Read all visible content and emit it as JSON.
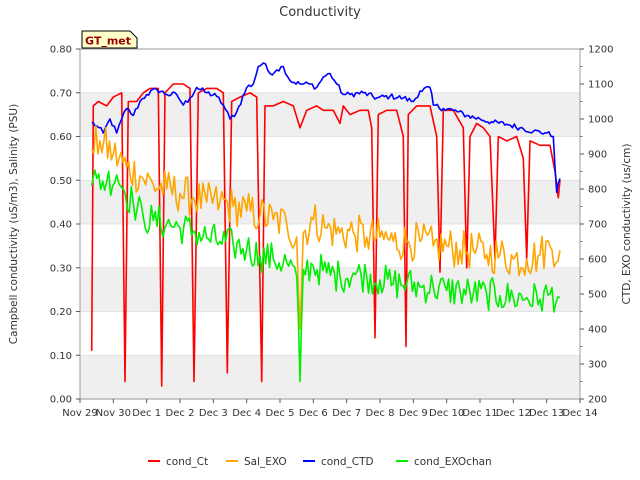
{
  "chart_data": {
    "type": "line",
    "title": "Conductivity",
    "badge": "GT_met",
    "ylabel_left": "Campbell conductivity (uS/m3), Salinity (PSU)",
    "ylabel_right": "CTD, EXO conductivity (us/cm)",
    "ylim_left": [
      0,
      0.8
    ],
    "ylim_right": [
      200,
      1200
    ],
    "yticks_left": [
      "0.00",
      "0.10",
      "0.20",
      "0.30",
      "0.40",
      "0.50",
      "0.60",
      "0.70",
      "0.80"
    ],
    "yticks_right": [
      "200",
      "300",
      "400",
      "500",
      "600",
      "700",
      "800",
      "900",
      "1000",
      "1100",
      "1200"
    ],
    "xticks": [
      "Nov 29",
      "Nov 30",
      "Dec 1",
      "Dec 2",
      "Dec 3",
      "Dec 4",
      "Dec 5",
      "Dec 6",
      "Dec 7",
      "Dec 8",
      "Dec 9",
      "Dec 10",
      "Dec 11",
      "Dec 12",
      "Dec 13",
      "Dec 14"
    ],
    "x_start": "Nov 29",
    "x_end": "Dec 14",
    "band_stripes": true,
    "legend_position": "bottom",
    "series": [
      {
        "name": "cond_Ct",
        "axis": "left",
        "color": "#ff0000",
        "points": [
          [
            0.35,
            0.11
          ],
          [
            0.4,
            0.67
          ],
          [
            0.55,
            0.68
          ],
          [
            0.8,
            0.67
          ],
          [
            1.0,
            0.69
          ],
          [
            1.25,
            0.7
          ],
          [
            1.35,
            0.04
          ],
          [
            1.45,
            0.68
          ],
          [
            1.7,
            0.68
          ],
          [
            1.9,
            0.7
          ],
          [
            2.1,
            0.71
          ],
          [
            2.35,
            0.71
          ],
          [
            2.45,
            0.03
          ],
          [
            2.55,
            0.7
          ],
          [
            2.8,
            0.72
          ],
          [
            3.1,
            0.72
          ],
          [
            3.3,
            0.71
          ],
          [
            3.42,
            0.04
          ],
          [
            3.55,
            0.7
          ],
          [
            3.8,
            0.71
          ],
          [
            4.1,
            0.71
          ],
          [
            4.3,
            0.7
          ],
          [
            4.42,
            0.06
          ],
          [
            4.55,
            0.68
          ],
          [
            4.8,
            0.69
          ],
          [
            5.1,
            0.7
          ],
          [
            5.3,
            0.69
          ],
          [
            5.45,
            0.04
          ],
          [
            5.55,
            0.67
          ],
          [
            5.8,
            0.67
          ],
          [
            6.1,
            0.68
          ],
          [
            6.4,
            0.67
          ],
          [
            6.6,
            0.62
          ],
          [
            6.8,
            0.66
          ],
          [
            7.1,
            0.67
          ],
          [
            7.3,
            0.66
          ],
          [
            7.6,
            0.66
          ],
          [
            7.8,
            0.63
          ],
          [
            7.9,
            0.67
          ],
          [
            8.1,
            0.65
          ],
          [
            8.4,
            0.66
          ],
          [
            8.65,
            0.66
          ],
          [
            8.75,
            0.62
          ],
          [
            8.85,
            0.14
          ],
          [
            8.95,
            0.65
          ],
          [
            9.2,
            0.66
          ],
          [
            9.5,
            0.66
          ],
          [
            9.7,
            0.6
          ],
          [
            9.78,
            0.12
          ],
          [
            9.85,
            0.65
          ],
          [
            10.1,
            0.67
          ],
          [
            10.5,
            0.67
          ],
          [
            10.7,
            0.6
          ],
          [
            10.8,
            0.29
          ],
          [
            10.9,
            0.66
          ],
          [
            11.2,
            0.66
          ],
          [
            11.5,
            0.62
          ],
          [
            11.6,
            0.3
          ],
          [
            11.7,
            0.6
          ],
          [
            11.9,
            0.63
          ],
          [
            12.1,
            0.62
          ],
          [
            12.3,
            0.6
          ],
          [
            12.45,
            0.32
          ],
          [
            12.55,
            0.6
          ],
          [
            12.8,
            0.59
          ],
          [
            13.1,
            0.6
          ],
          [
            13.3,
            0.55
          ],
          [
            13.4,
            0.32
          ],
          [
            13.5,
            0.59
          ],
          [
            13.8,
            0.58
          ],
          [
            14.1,
            0.58
          ],
          [
            14.25,
            0.52
          ],
          [
            14.35,
            0.46
          ],
          [
            14.4,
            0.5
          ]
        ]
      },
      {
        "name": "Sal_EXO",
        "axis": "left",
        "color": "#ffa500",
        "points": [
          [
            0.35,
            0.57
          ],
          [
            0.6,
            0.59
          ],
          [
            1.0,
            0.56
          ],
          [
            1.4,
            0.53
          ],
          [
            1.8,
            0.51
          ],
          [
            2.2,
            0.49
          ],
          [
            2.6,
            0.48
          ],
          [
            3.0,
            0.47
          ],
          [
            3.4,
            0.46
          ],
          [
            3.8,
            0.45
          ],
          [
            4.2,
            0.45
          ],
          [
            4.6,
            0.44
          ],
          [
            5.0,
            0.43
          ],
          [
            5.4,
            0.42
          ],
          [
            5.8,
            0.41
          ],
          [
            6.2,
            0.4
          ],
          [
            6.5,
            0.37
          ],
          [
            6.6,
            0.16
          ],
          [
            6.7,
            0.38
          ],
          [
            7.0,
            0.41
          ],
          [
            7.4,
            0.39
          ],
          [
            7.8,
            0.38
          ],
          [
            8.2,
            0.38
          ],
          [
            8.6,
            0.37
          ],
          [
            9.0,
            0.37
          ],
          [
            9.4,
            0.36
          ],
          [
            9.8,
            0.36
          ],
          [
            10.2,
            0.36
          ],
          [
            10.6,
            0.35
          ],
          [
            11.0,
            0.35
          ],
          [
            11.4,
            0.34
          ],
          [
            11.8,
            0.34
          ],
          [
            12.2,
            0.33
          ],
          [
            12.6,
            0.33
          ],
          [
            13.0,
            0.32
          ],
          [
            13.4,
            0.32
          ],
          [
            13.8,
            0.33
          ],
          [
            14.1,
            0.35
          ],
          [
            14.4,
            0.34
          ]
        ],
        "noise": 0.045
      },
      {
        "name": "cond_CTD",
        "axis": "right",
        "color": "#0000ff",
        "points": [
          [
            0.35,
            990
          ],
          [
            0.5,
            980
          ],
          [
            0.7,
            960
          ],
          [
            0.9,
            1000
          ],
          [
            1.1,
            960
          ],
          [
            1.25,
            1000
          ],
          [
            1.4,
            1030
          ],
          [
            1.6,
            1010
          ],
          [
            1.8,
            1050
          ],
          [
            2.0,
            1070
          ],
          [
            2.3,
            1085
          ],
          [
            2.6,
            1070
          ],
          [
            2.9,
            1070
          ],
          [
            3.1,
            1040
          ],
          [
            3.3,
            1060
          ],
          [
            3.5,
            1090
          ],
          [
            3.8,
            1075
          ],
          [
            4.1,
            1065
          ],
          [
            4.3,
            1040
          ],
          [
            4.5,
            1000
          ],
          [
            4.7,
            1020
          ],
          [
            5.0,
            1090
          ],
          [
            5.2,
            1100
          ],
          [
            5.35,
            1150
          ],
          [
            5.5,
            1160
          ],
          [
            5.7,
            1130
          ],
          [
            5.9,
            1140
          ],
          [
            6.1,
            1150
          ],
          [
            6.3,
            1110
          ],
          [
            6.6,
            1100
          ],
          [
            6.9,
            1100
          ],
          [
            7.1,
            1090
          ],
          [
            7.3,
            1120
          ],
          [
            7.5,
            1130
          ],
          [
            7.7,
            1100
          ],
          [
            7.9,
            1070
          ],
          [
            8.1,
            1070
          ],
          [
            8.5,
            1075
          ],
          [
            8.9,
            1060
          ],
          [
            9.3,
            1065
          ],
          [
            9.7,
            1060
          ],
          [
            10.0,
            1050
          ],
          [
            10.2,
            1080
          ],
          [
            10.5,
            1090
          ],
          [
            10.6,
            1040
          ],
          [
            10.9,
            1030
          ],
          [
            11.2,
            1025
          ],
          [
            11.6,
            1010
          ],
          [
            12.0,
            1000
          ],
          [
            12.4,
            990
          ],
          [
            12.8,
            985
          ],
          [
            13.2,
            975
          ],
          [
            13.6,
            965
          ],
          [
            14.0,
            960
          ],
          [
            14.2,
            950
          ],
          [
            14.3,
            790
          ],
          [
            14.4,
            830
          ]
        ],
        "noise": 8
      },
      {
        "name": "cond_EXOchan",
        "axis": "right",
        "color": "#00ee00",
        "points": [
          [
            0.35,
            810
          ],
          [
            0.5,
            830
          ],
          [
            0.8,
            820
          ],
          [
            1.1,
            840
          ],
          [
            1.3,
            800
          ],
          [
            1.6,
            760
          ],
          [
            1.9,
            720
          ],
          [
            2.2,
            710
          ],
          [
            2.6,
            700
          ],
          [
            3.0,
            690
          ],
          [
            3.4,
            680
          ],
          [
            3.8,
            660
          ],
          [
            4.2,
            650
          ],
          [
            4.6,
            640
          ],
          [
            5.0,
            630
          ],
          [
            5.4,
            610
          ],
          [
            5.8,
            600
          ],
          [
            6.2,
            590
          ],
          [
            6.5,
            550
          ],
          [
            6.6,
            250
          ],
          [
            6.7,
            570
          ],
          [
            7.0,
            580
          ],
          [
            7.4,
            560
          ],
          [
            7.8,
            550
          ],
          [
            8.2,
            560
          ],
          [
            8.6,
            550
          ],
          [
            9.0,
            540
          ],
          [
            9.4,
            530
          ],
          [
            9.8,
            530
          ],
          [
            10.2,
            520
          ],
          [
            10.6,
            520
          ],
          [
            11.0,
            510
          ],
          [
            11.4,
            510
          ],
          [
            11.8,
            500
          ],
          [
            12.2,
            500
          ],
          [
            12.6,
            495
          ],
          [
            13.0,
            490
          ],
          [
            13.4,
            490
          ],
          [
            13.8,
            485
          ],
          [
            14.1,
            500
          ],
          [
            14.4,
            490
          ]
        ],
        "noise": 48
      }
    ]
  }
}
